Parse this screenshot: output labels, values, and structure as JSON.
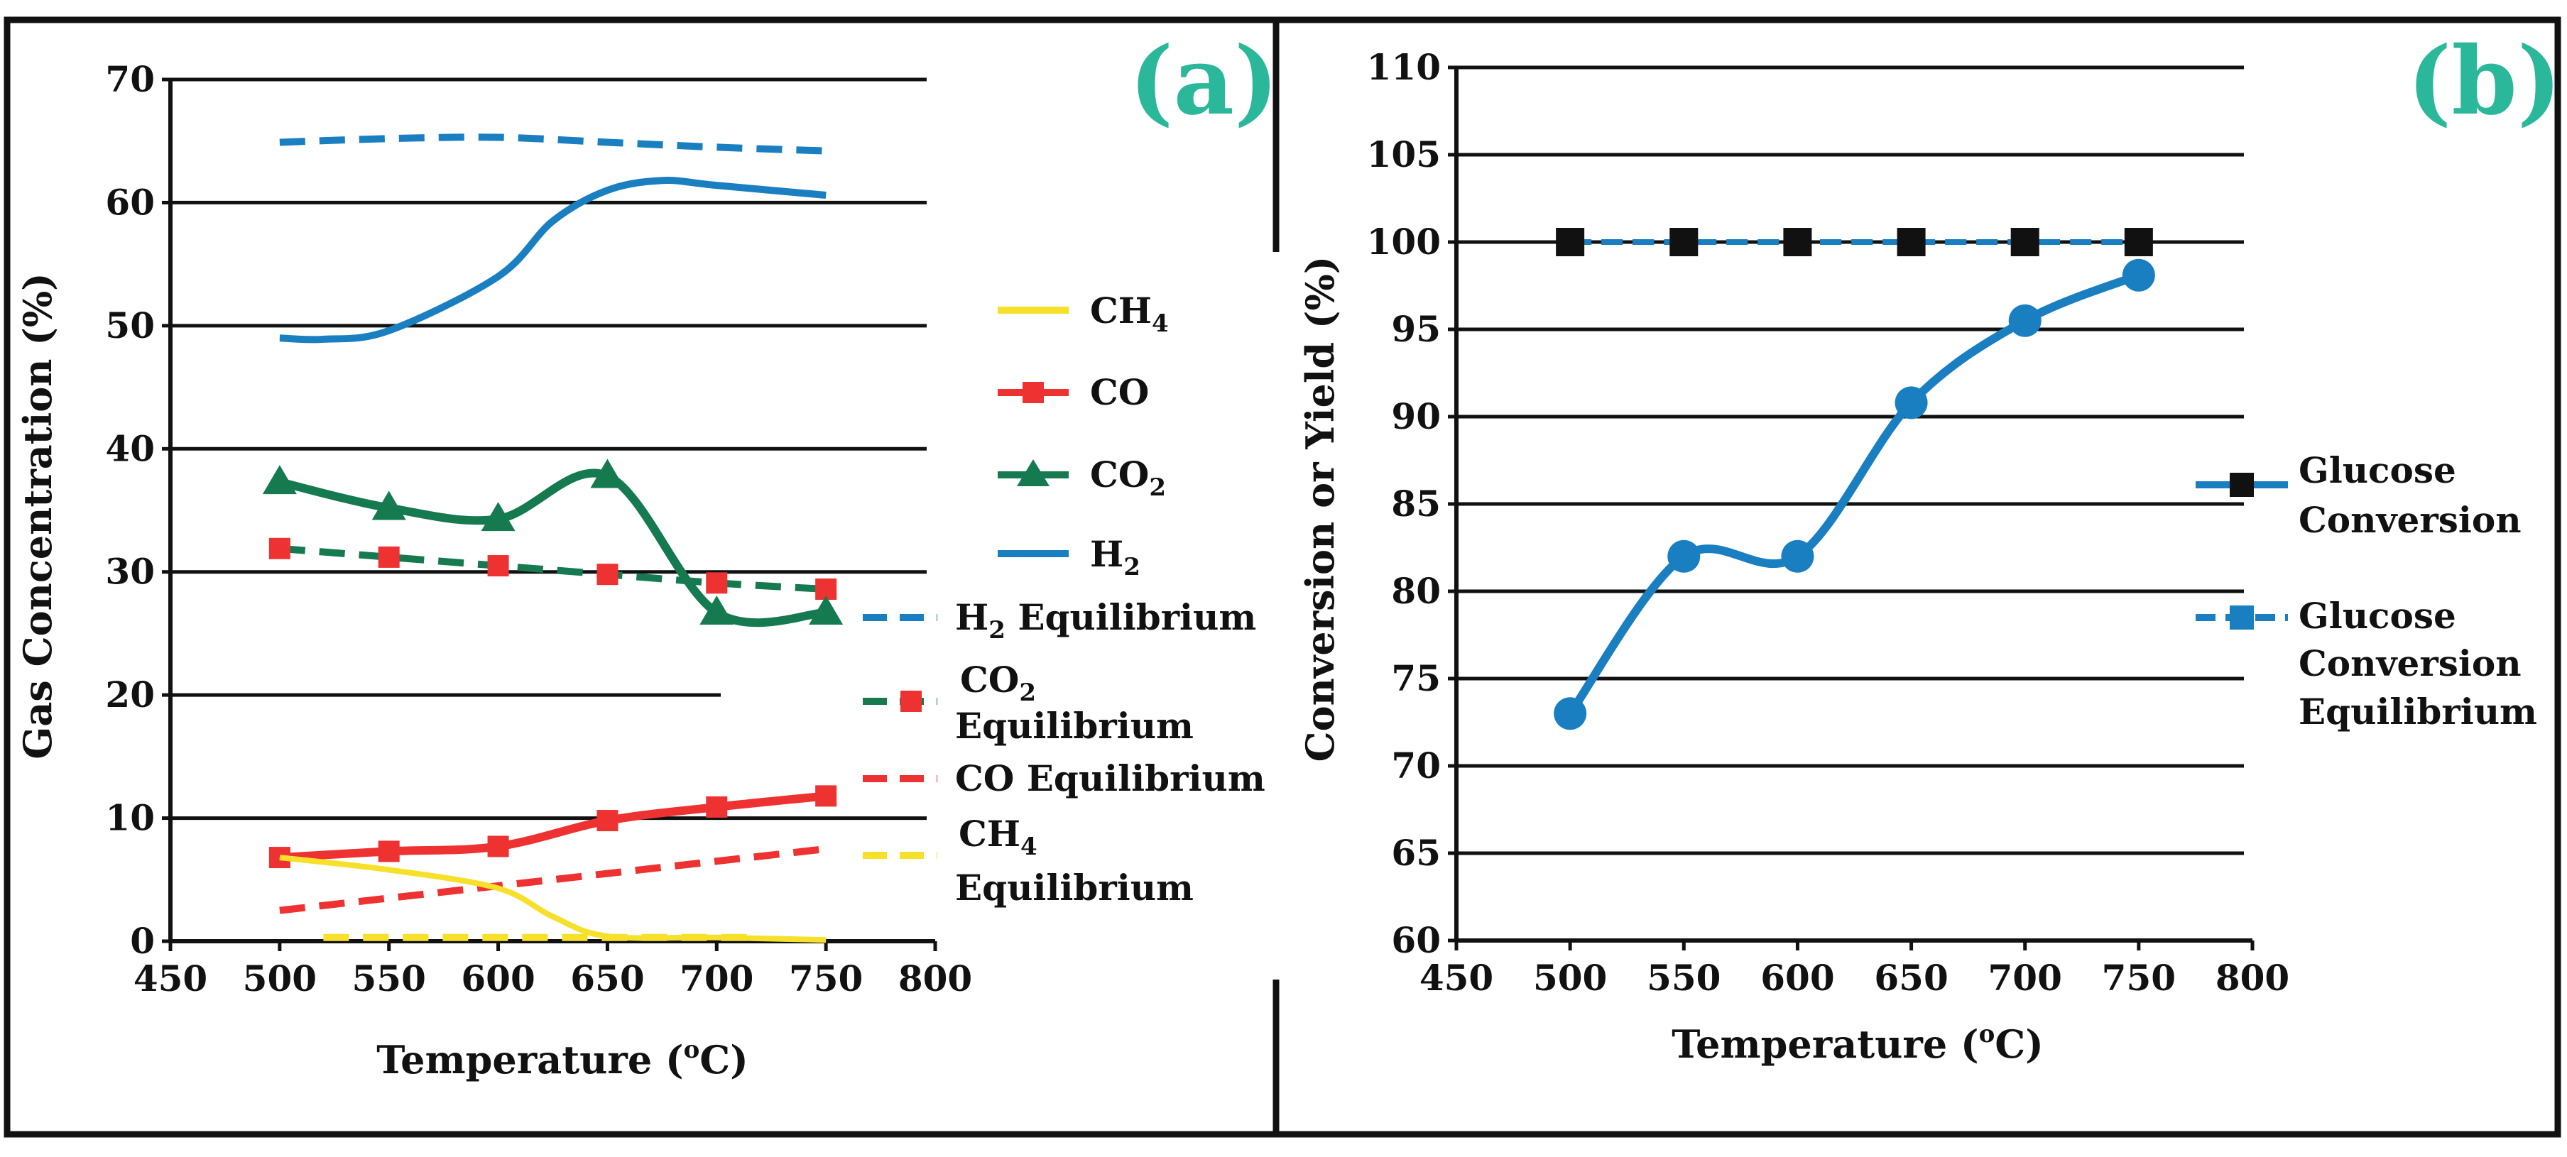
{
  "colors": {
    "green_letter": "#2bb89a",
    "h2": "#1a7fc1",
    "co2": "#157a4f",
    "co": "#ee3232",
    "ch4": "#f7e02a",
    "marker_black": "#111111",
    "frame": "#111111"
  },
  "chart_data": [
    {
      "type": "line",
      "panel_label": "(a)",
      "xlabel": "Temperature (",
      "xlabel_sup": "o",
      "xlabel_end": "C)",
      "ylabel": "Gas Concentration (%)",
      "xlim": [
        450,
        800
      ],
      "ylim": [
        0,
        70
      ],
      "xticks": [
        "450",
        "500",
        "550",
        "600",
        "650",
        "700",
        "750",
        "800"
      ],
      "yticks": [
        "0",
        "10",
        "20",
        "30",
        "40",
        "50",
        "60",
        "70"
      ],
      "series": [
        {
          "key": "h2",
          "name": "H",
          "sub": "2",
          "style": "solid",
          "marker": "none",
          "x": [
            500,
            520,
            550,
            600,
            625,
            650,
            675,
            700,
            750
          ],
          "y": [
            49,
            48.9,
            49.6,
            54,
            58.5,
            61,
            61.8,
            61.4,
            60.6
          ]
        },
        {
          "key": "co2",
          "name": "CO",
          "sub": "2",
          "style": "solid",
          "marker": "triangle",
          "x": [
            500,
            550,
            600,
            650,
            700,
            750
          ],
          "y": [
            37.3,
            35.2,
            34.3,
            37.8,
            26.7,
            26.7
          ]
        },
        {
          "key": "co",
          "name": "CO",
          "sub": "",
          "style": "solid",
          "marker": "square",
          "x": [
            500,
            550,
            600,
            650,
            700,
            750
          ],
          "y": [
            6.8,
            7.3,
            7.7,
            9.8,
            10.9,
            11.8
          ]
        },
        {
          "key": "ch4",
          "name": "CH",
          "sub": "4",
          "style": "solid",
          "marker": "none",
          "x": [
            500,
            550,
            600,
            625,
            650,
            700,
            750
          ],
          "y": [
            6.8,
            5.8,
            4.3,
            2.0,
            0.4,
            0.3,
            0.1
          ]
        },
        {
          "key": "h2eq",
          "name": "H",
          "sub": "2",
          "suffix": " Equilibrium",
          "style": "dashed",
          "marker": "none",
          "x": [
            500,
            550,
            600,
            650,
            700,
            750
          ],
          "y": [
            64.9,
            65.2,
            65.3,
            64.9,
            64.5,
            64.2
          ]
        },
        {
          "key": "co2eq",
          "name": "CO",
          "sub": "2",
          "suffix": "Equilibrium",
          "style": "dashed",
          "marker": "square",
          "x": [
            500,
            550,
            600,
            650,
            700,
            750
          ],
          "y": [
            31.9,
            31.2,
            30.5,
            29.8,
            29.1,
            28.6
          ]
        },
        {
          "key": "coeq",
          "name": "CO Equilibrium",
          "sub": "",
          "style": "dashed",
          "marker": "none",
          "x": [
            500,
            750
          ],
          "y": [
            2.5,
            7.5
          ]
        },
        {
          "key": "ch4eq",
          "name": "CH",
          "sub": "4",
          "suffix": "Equilibrium",
          "style": "dashed",
          "marker": "none",
          "x": [
            520,
            720
          ],
          "y": [
            0.3,
            0.3
          ]
        }
      ]
    },
    {
      "type": "line",
      "panel_label": "(b)",
      "xlabel": "Temperature (",
      "xlabel_sup": "o",
      "xlabel_end": "C)",
      "ylabel": "Conversion or Yield (%)",
      "xlim": [
        450,
        800
      ],
      "ylim": [
        60,
        110
      ],
      "xticks": [
        "450",
        "500",
        "550",
        "600",
        "650",
        "700",
        "750",
        "800"
      ],
      "yticks": [
        "60",
        "65",
        "70",
        "75",
        "80",
        "85",
        "90",
        "95",
        "100",
        "105",
        "110"
      ],
      "series": [
        {
          "key": "conv",
          "name": "Glucose",
          "name2": "Conversion",
          "style": "solid",
          "marker": "circle",
          "x": [
            500,
            550,
            600,
            650,
            700,
            750
          ],
          "y": [
            73,
            82,
            82,
            90.8,
            95.5,
            98.1
          ]
        },
        {
          "key": "conveq",
          "name": "Glucose",
          "name2": "Conversion",
          "name3": "Equilibrium",
          "style": "dashed",
          "marker": "square",
          "x": [
            500,
            550,
            600,
            650,
            700,
            750
          ],
          "y": [
            100,
            100,
            100,
            100,
            100,
            100
          ]
        }
      ]
    }
  ]
}
